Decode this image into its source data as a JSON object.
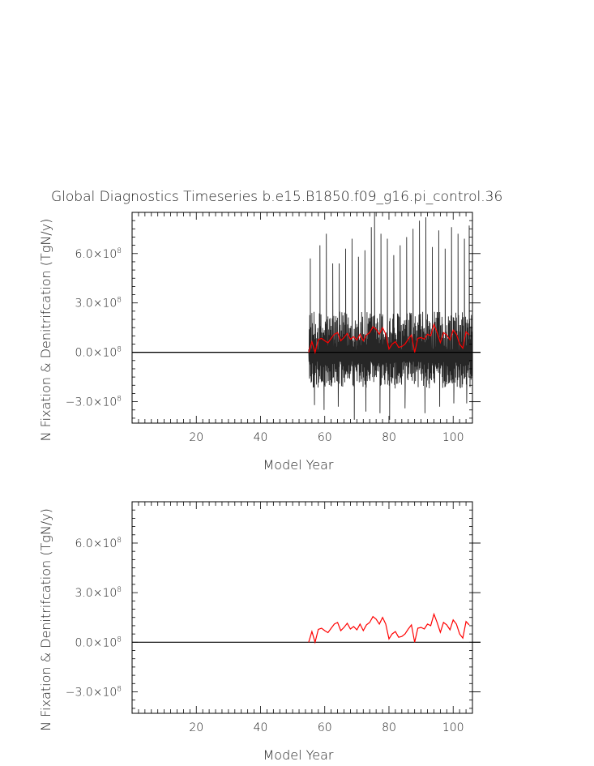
{
  "figure": {
    "title": "Global Diagnostics Timeseries b.e15.B1850.f09_g16.pi_control.36"
  },
  "chart_data": [
    {
      "type": "line",
      "title": "Global Diagnostics Timeseries b.e15.B1850.f09_g16.pi_control.36",
      "xlabel": "Model Year",
      "ylabel": "N Fixation & Denitrifcation (TgN/y)",
      "xlim": [
        0,
        106
      ],
      "ylim": [
        -430000000.0,
        850000000.0
      ],
      "x_ticks": [
        20,
        40,
        60,
        80,
        100
      ],
      "x_tick_labels": [
        "20",
        "40",
        "60",
        "80",
        "100"
      ],
      "y_ticks": [
        -300000000.0,
        0,
        300000000.0,
        600000000.0
      ],
      "y_tick_labels": [
        {
          "mant": "−3.0×10",
          "exp": "8"
        },
        {
          "mant": "0.0×10",
          "exp": "8"
        },
        {
          "mant": "3.0×10",
          "exp": "8"
        },
        {
          "mant": "6.0×10",
          "exp": "8"
        }
      ],
      "series": [
        {
          "color": "#000000",
          "style": "monthly",
          "x_start": 55.0,
          "x_end": 106.0,
          "zero_before_start": true,
          "typical_range": [
            -220000000.0,
            260000000.0
          ],
          "peak_years": [
            55.5,
            58.5,
            60.5,
            62.5,
            64.5,
            66.5,
            68.5,
            70.5,
            72.5,
            74.5,
            75.5,
            77.5,
            79.5,
            81.5,
            83.5,
            85.5,
            87.5,
            89.5,
            91.5,
            93.5,
            95.5,
            97.5,
            99.5,
            101.5,
            103.5,
            105.0
          ],
          "peak_values": [
            570000000.0,
            650000000.0,
            720000000.0,
            540000000.0,
            540000000.0,
            630000000.0,
            690000000.0,
            580000000.0,
            620000000.0,
            760000000.0,
            850000000.0,
            720000000.0,
            690000000.0,
            590000000.0,
            650000000.0,
            700000000.0,
            750000000.0,
            800000000.0,
            820000000.0,
            640000000.0,
            740000000.0,
            630000000.0,
            760000000.0,
            720000000.0,
            690000000.0,
            770000000.0
          ],
          "trough_years": [
            56.8,
            59.8,
            64.2,
            69.2,
            72.8,
            77.2,
            80.2,
            85.0,
            91.2,
            95.8,
            100.2,
            104.2
          ],
          "trough_values": [
            -320000000.0,
            -350000000.0,
            -330000000.0,
            -410000000.0,
            -360000000.0,
            -370000000.0,
            -410000000.0,
            -340000000.0,
            -370000000.0,
            -330000000.0,
            -310000000.0,
            -310000000.0
          ]
        },
        {
          "color": "#ff0000",
          "style": "annual",
          "years": [
            55,
            56,
            57,
            58,
            59,
            60,
            61,
            62,
            63,
            64,
            65,
            66,
            67,
            68,
            69,
            70,
            71,
            72,
            73,
            74,
            75,
            76,
            77,
            78,
            79,
            80,
            81,
            82,
            83,
            84,
            85,
            86,
            87,
            88,
            89,
            90,
            91,
            92,
            93,
            94,
            95,
            96,
            97,
            98,
            99,
            100,
            101,
            102,
            103,
            104,
            105
          ],
          "values": [
            0,
            65000000.0,
            0,
            78000000.0,
            85000000.0,
            70000000.0,
            58000000.0,
            85000000.0,
            110000000.0,
            120000000.0,
            70000000.0,
            90000000.0,
            115000000.0,
            80000000.0,
            95000000.0,
            75000000.0,
            110000000.0,
            70000000.0,
            105000000.0,
            120000000.0,
            155000000.0,
            140000000.0,
            110000000.0,
            150000000.0,
            110000000.0,
            20000000.0,
            50000000.0,
            65000000.0,
            30000000.0,
            35000000.0,
            50000000.0,
            80000000.0,
            105000000.0,
            0,
            85000000.0,
            90000000.0,
            80000000.0,
            110000000.0,
            100000000.0,
            170000000.0,
            120000000.0,
            60000000.0,
            120000000.0,
            105000000.0,
            75000000.0,
            135000000.0,
            110000000.0,
            50000000.0,
            25000000.0,
            125000000.0,
            105000000.0
          ]
        }
      ]
    },
    {
      "type": "line",
      "xlabel": "Model Year",
      "ylabel": "N Fixation & Denitrifcation (TgN/y)",
      "xlim": [
        0,
        106
      ],
      "ylim": [
        -430000000.0,
        850000000.0
      ],
      "x_ticks": [
        20,
        40,
        60,
        80,
        100
      ],
      "x_tick_labels": [
        "20",
        "40",
        "60",
        "80",
        "100"
      ],
      "y_ticks": [
        -300000000.0,
        0,
        300000000.0,
        600000000.0
      ],
      "y_tick_labels": [
        {
          "mant": "−3.0×10",
          "exp": "8"
        },
        {
          "mant": "0.0×10",
          "exp": "8"
        },
        {
          "mant": "3.0×10",
          "exp": "8"
        },
        {
          "mant": "6.0×10",
          "exp": "8"
        }
      ],
      "series": [
        {
          "color": "#ff0000",
          "style": "annual",
          "years": [
            55,
            56,
            57,
            58,
            59,
            60,
            61,
            62,
            63,
            64,
            65,
            66,
            67,
            68,
            69,
            70,
            71,
            72,
            73,
            74,
            75,
            76,
            77,
            78,
            79,
            80,
            81,
            82,
            83,
            84,
            85,
            86,
            87,
            88,
            89,
            90,
            91,
            92,
            93,
            94,
            95,
            96,
            97,
            98,
            99,
            100,
            101,
            102,
            103,
            104,
            105
          ],
          "values": [
            0,
            65000000.0,
            0,
            78000000.0,
            85000000.0,
            70000000.0,
            58000000.0,
            85000000.0,
            110000000.0,
            120000000.0,
            70000000.0,
            90000000.0,
            115000000.0,
            80000000.0,
            95000000.0,
            75000000.0,
            110000000.0,
            70000000.0,
            105000000.0,
            120000000.0,
            155000000.0,
            140000000.0,
            110000000.0,
            150000000.0,
            110000000.0,
            20000000.0,
            50000000.0,
            65000000.0,
            30000000.0,
            35000000.0,
            50000000.0,
            80000000.0,
            105000000.0,
            0,
            85000000.0,
            90000000.0,
            80000000.0,
            110000000.0,
            100000000.0,
            170000000.0,
            120000000.0,
            60000000.0,
            120000000.0,
            105000000.0,
            75000000.0,
            135000000.0,
            110000000.0,
            50000000.0,
            25000000.0,
            125000000.0,
            105000000.0
          ]
        }
      ]
    }
  ]
}
